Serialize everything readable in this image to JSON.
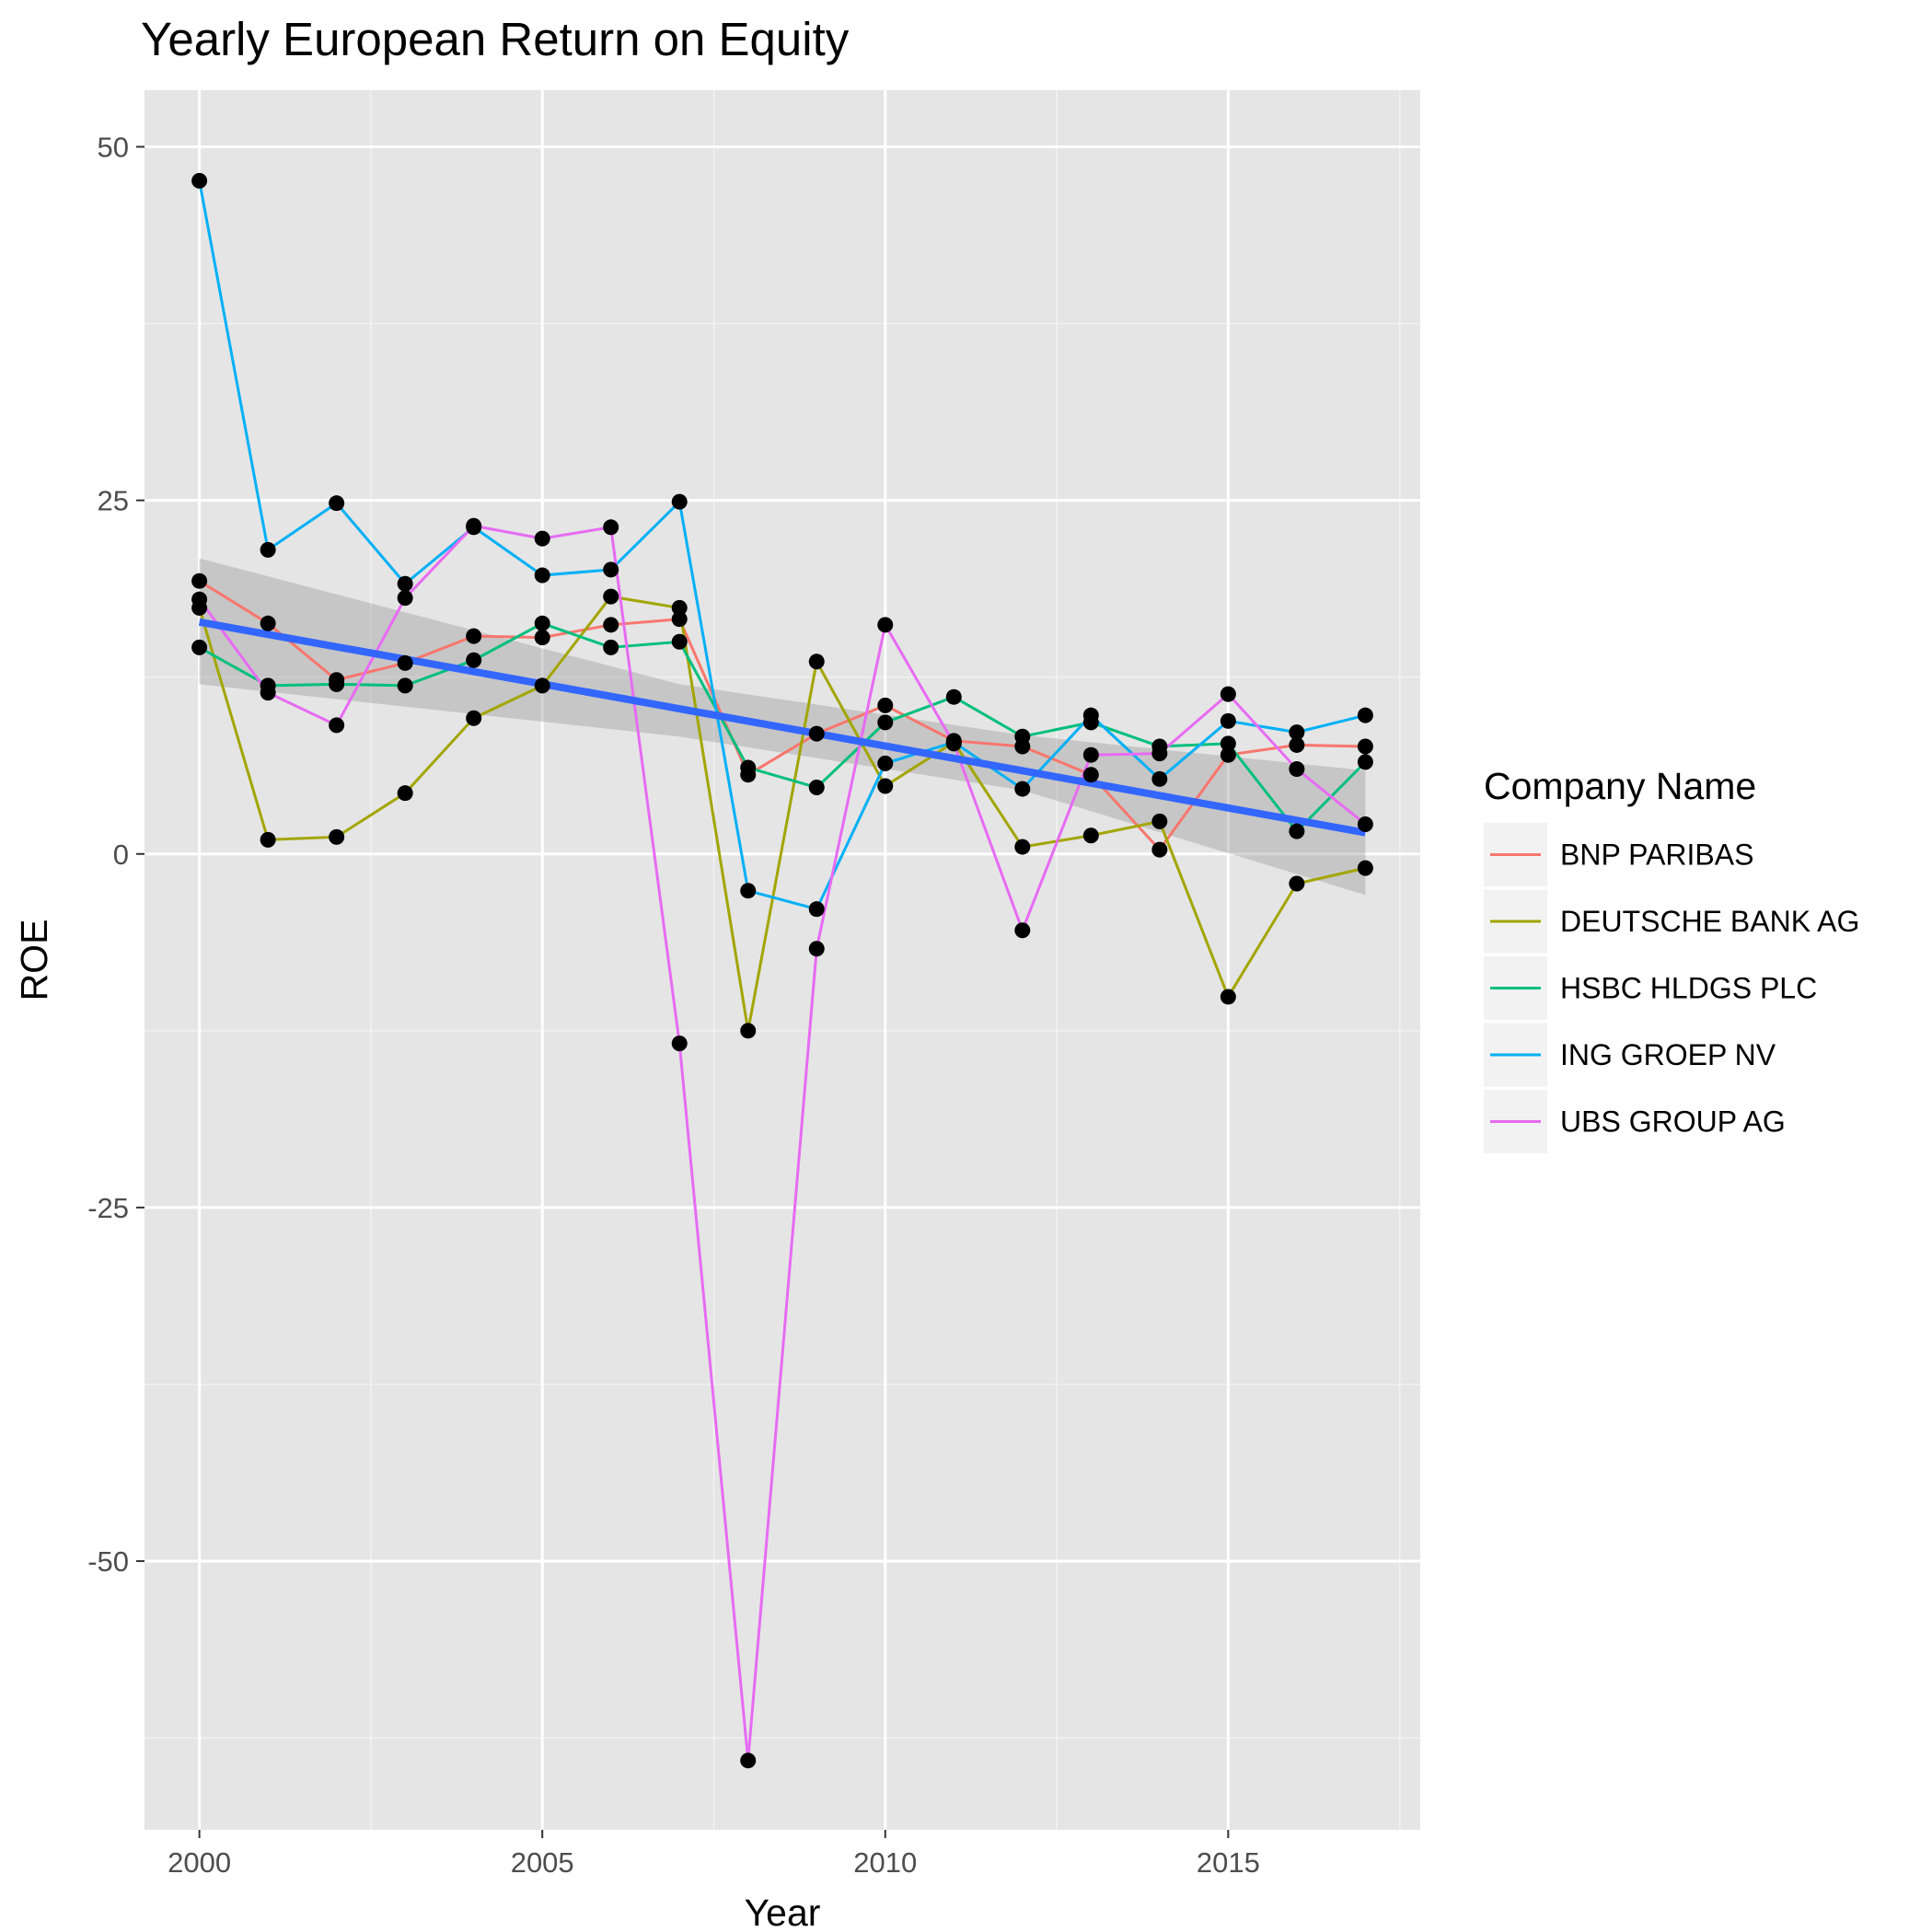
{
  "chart_data": {
    "type": "line",
    "title": "Yearly European Return on Equity",
    "xlabel": "Year",
    "ylabel": "ROE",
    "xlim": [
      1999.2,
      2017.8
    ],
    "ylim": [
      -69,
      54
    ],
    "x_ticks": [
      2000,
      2005,
      2010,
      2015
    ],
    "y_ticks": [
      -50,
      -25,
      0,
      25,
      50
    ],
    "grid": true,
    "legend": {
      "title": "Company Name",
      "position": "right"
    },
    "x": [
      2000,
      2001,
      2002,
      2003,
      2004,
      2005,
      2006,
      2007,
      2008,
      2009,
      2010,
      2011,
      2012,
      2013,
      2014,
      2015,
      2016,
      2017
    ],
    "series": [
      {
        "name": "BNP PARIBAS",
        "color": "#F8766D",
        "values": [
          19.3,
          16.3,
          12.3,
          13.5,
          15.4,
          15.3,
          16.2,
          16.6,
          5.6,
          8.5,
          10.5,
          8.0,
          7.6,
          5.6,
          0.3,
          7.0,
          7.7,
          7.6
        ]
      },
      {
        "name": "DEUTSCHE BANK AG",
        "color": "#A3A500",
        "values": [
          17.4,
          1.0,
          1.2,
          4.3,
          9.6,
          11.9,
          18.2,
          17.4,
          -12.5,
          13.6,
          4.8,
          7.9,
          0.5,
          1.3,
          2.3,
          -10.1,
          -2.1,
          -1.0
        ]
      },
      {
        "name": "HSBC HLDGS PLC",
        "color": "#00BF7D",
        "values": [
          14.6,
          11.9,
          12.0,
          11.9,
          13.7,
          16.3,
          14.6,
          15.0,
          6.1,
          4.7,
          9.3,
          11.1,
          8.3,
          9.3,
          7.6,
          7.8,
          1.6,
          6.5
        ]
      },
      {
        "name": "ING GROEP NV",
        "color": "#00B0F6",
        "values": [
          47.6,
          21.5,
          24.8,
          19.1,
          23.1,
          19.7,
          20.1,
          24.9,
          -2.6,
          -3.9,
          6.4,
          7.9,
          4.6,
          9.8,
          5.3,
          9.4,
          8.6,
          9.8
        ]
      },
      {
        "name": "UBS GROUP AG",
        "color": "#E76BF3",
        "values": [
          18.0,
          11.4,
          9.1,
          18.1,
          23.2,
          22.3,
          23.1,
          -13.4,
          -64.1,
          -6.7,
          16.2,
          7.8,
          -5.4,
          7.0,
          7.1,
          11.3,
          6.0,
          2.1
        ]
      }
    ],
    "trend": {
      "color": "#3366FF",
      "start": {
        "x": 2000,
        "y": 16.4
      },
      "end": {
        "x": 2017,
        "y": 1.5
      },
      "ci_lower": [
        12.0,
        8.3,
        4.5,
        -2.9
      ],
      "ci_upper": [
        20.9,
        12.0,
        8.4,
        5.9
      ],
      "ci_x": [
        2000,
        2007,
        2012,
        2017
      ]
    }
  }
}
